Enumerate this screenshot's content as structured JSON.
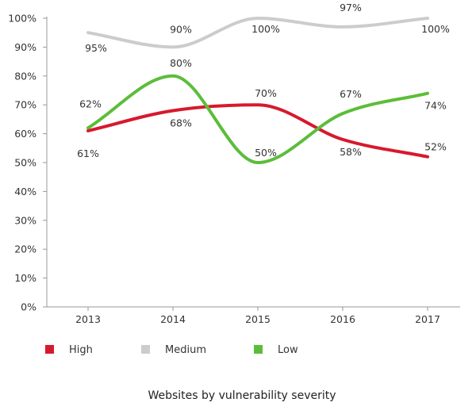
{
  "chart_data": {
    "type": "line",
    "title": "Websites by vulnerability severity",
    "xlabel": "",
    "ylabel": "",
    "categories": [
      "2013",
      "2014",
      "2015",
      "2016",
      "2017"
    ],
    "ylim": [
      0,
      100
    ],
    "yticks": [
      0,
      10,
      20,
      30,
      40,
      50,
      60,
      70,
      80,
      90,
      100
    ],
    "ytick_labels": [
      "0%",
      "10%",
      "20%",
      "30%",
      "40%",
      "50%",
      "60%",
      "70%",
      "80%",
      "90%",
      "100%"
    ],
    "grid": false,
    "legend_position": "bottom-left",
    "series": [
      {
        "name": "High",
        "color": "#d7192d",
        "values": [
          61,
          68,
          70,
          58,
          52
        ],
        "labels": [
          "61%",
          "68%",
          "70%",
          "58%",
          "52%"
        ]
      },
      {
        "name": "Medium",
        "color": "#cccccc",
        "values": [
          95,
          90,
          100,
          97,
          100
        ],
        "labels": [
          "95%",
          "90%",
          "100%",
          "97%",
          "100%"
        ]
      },
      {
        "name": "Low",
        "color": "#5cbd3a",
        "values": [
          62,
          80,
          50,
          67,
          74
        ],
        "labels": [
          "62%",
          "80%",
          "50%",
          "67%",
          "74%"
        ]
      }
    ]
  }
}
